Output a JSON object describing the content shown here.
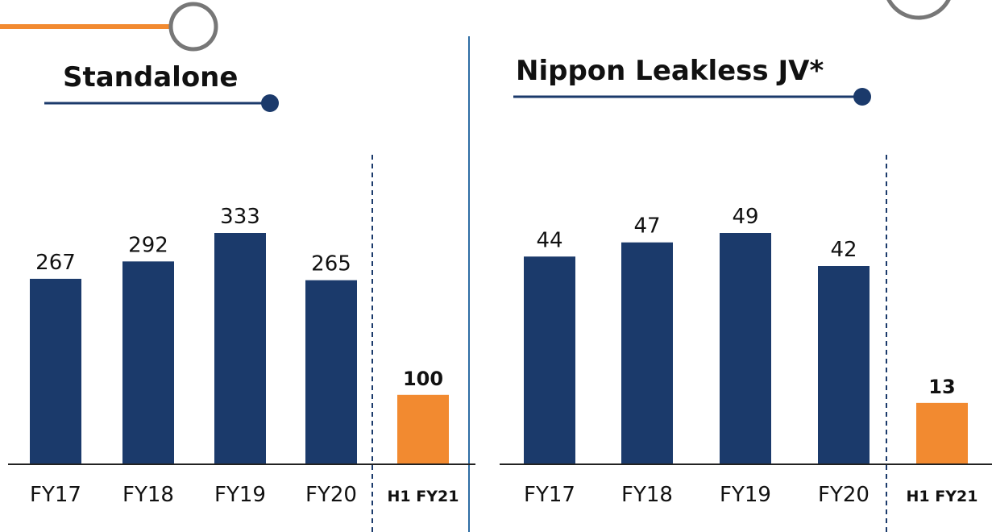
{
  "chart_data": [
    {
      "type": "bar",
      "title": "Standalone",
      "categories": [
        "FY17",
        "FY18",
        "FY19",
        "FY20",
        "H1 FY21"
      ],
      "values": [
        267,
        292,
        333,
        265,
        100
      ],
      "colors": [
        "#1b3a6b",
        "#1b3a6b",
        "#1b3a6b",
        "#1b3a6b",
        "#f28a30"
      ]
    },
    {
      "type": "bar",
      "title": "Nippon Leakless JV*",
      "categories": [
        "FY17",
        "FY18",
        "FY19",
        "FY20",
        "H1 FY21"
      ],
      "values": [
        44,
        47,
        49,
        42,
        13
      ],
      "colors": [
        "#1b3a6b",
        "#1b3a6b",
        "#1b3a6b",
        "#1b3a6b",
        "#f28a30"
      ]
    }
  ]
}
